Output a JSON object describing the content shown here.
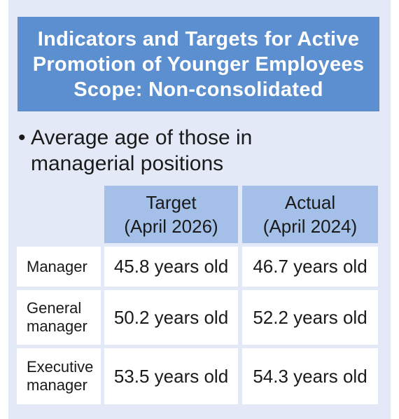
{
  "title": {
    "lines": [
      "Indicators and Targets for Active",
      "Promotion of Younger Employees",
      "Scope: Non-consolidated"
    ]
  },
  "subheading": {
    "bullet": "•",
    "lines": [
      "Average age of those in",
      "managerial positions"
    ]
  },
  "table": {
    "headers": [
      {
        "line1": "Target",
        "line2": "(April 2026)"
      },
      {
        "line1": "Actual",
        "line2": "(April 2024)"
      }
    ],
    "rows": [
      {
        "label_lines": [
          "Manager"
        ],
        "target": "45.8 years old",
        "actual": "46.7 years old"
      },
      {
        "label_lines": [
          "General",
          "manager"
        ],
        "target": "50.2 years old",
        "actual": "52.2 years old"
      },
      {
        "label_lines": [
          "Executive",
          "manager"
        ],
        "target": "53.5 years old",
        "actual": "54.3 years old"
      }
    ]
  },
  "colors": {
    "panel_background": "#e3e9f6",
    "title_background": "#5b8fcf",
    "header_background": "#a4c0e8",
    "cell_background": "#ffffff"
  }
}
